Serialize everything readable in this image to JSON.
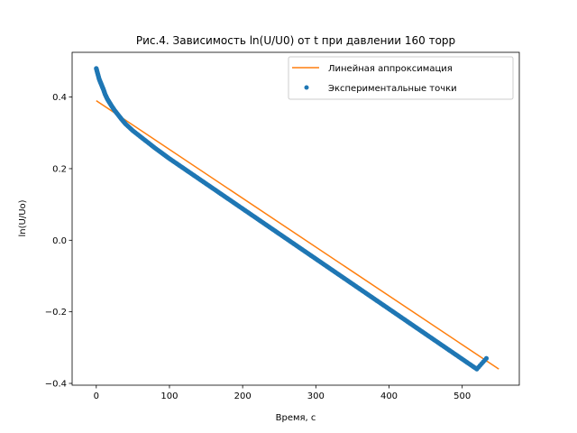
{
  "chart_data": {
    "type": "scatter",
    "title": "Рис.4. Зависимость ln(U/U0) от t при давлении 160 торр",
    "xlabel": "Время, с",
    "ylabel": "ln(U/Uo)",
    "xlim": [
      -33,
      578
    ],
    "ylim": [
      -0.405,
      0.525
    ],
    "xticks": [
      0,
      100,
      200,
      300,
      400,
      500
    ],
    "xtick_labels": [
      "0",
      "100",
      "200",
      "300",
      "400",
      "500"
    ],
    "yticks": [
      -0.4,
      -0.2,
      0.0,
      0.2,
      0.4
    ],
    "ytick_labels": [
      "−0.4",
      "−0.2",
      "0.0",
      "0.2",
      "0.4"
    ],
    "grid": false,
    "legend_position": "top-right",
    "series": [
      {
        "name": "Линейная аппроксимация",
        "kind": "line",
        "color": "#ff7f0e",
        "x": [
          0,
          550
        ],
        "y": [
          0.39,
          -0.36
        ]
      },
      {
        "name": "Экспериментальные точки",
        "kind": "scatter",
        "color": "#1f77b4",
        "x": [
          0,
          2,
          4,
          6,
          8,
          10,
          12,
          15,
          18,
          21,
          25,
          30,
          35,
          40,
          50,
          60,
          70,
          80,
          90,
          100,
          110,
          120,
          130,
          140,
          150,
          160,
          170,
          180,
          190,
          200,
          210,
          220,
          230,
          240,
          250,
          260,
          270,
          280,
          290,
          300,
          310,
          320,
          330,
          340,
          350,
          360,
          370,
          380,
          390,
          400,
          410,
          420,
          430,
          440,
          450,
          460,
          470,
          480,
          490,
          500,
          510,
          520,
          533
        ],
        "y": [
          0.48,
          0.465,
          0.45,
          0.44,
          0.43,
          0.42,
          0.408,
          0.395,
          0.385,
          0.375,
          0.363,
          0.35,
          0.337,
          0.325,
          0.306,
          0.29,
          0.274,
          0.258,
          0.243,
          0.228,
          0.214,
          0.2,
          0.186,
          0.172,
          0.158,
          0.144,
          0.13,
          0.116,
          0.102,
          0.088,
          0.074,
          0.06,
          0.046,
          0.032,
          0.018,
          0.004,
          -0.01,
          -0.024,
          -0.038,
          -0.052,
          -0.066,
          -0.08,
          -0.094,
          -0.108,
          -0.122,
          -0.136,
          -0.15,
          -0.164,
          -0.178,
          -0.192,
          -0.206,
          -0.22,
          -0.234,
          -0.248,
          -0.262,
          -0.276,
          -0.29,
          -0.304,
          -0.318,
          -0.332,
          -0.346,
          -0.36,
          -0.33
        ]
      }
    ]
  }
}
